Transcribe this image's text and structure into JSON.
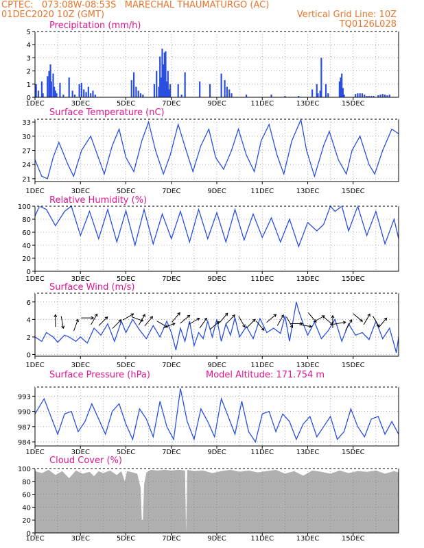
{
  "header": {
    "left_line1": "CPTEC:   073:08W-08:53S   MARECHAL THAUMATURGO (AC)",
    "left_line2": "01DEC2020 10Z (GMT)",
    "right_line2": "Vertical Grid Line: 10Z",
    "right_line3": "TQ0126L028"
  },
  "colors": {
    "series": "#2a4ee0",
    "title": "#e0158f",
    "header": "#e8742a",
    "cloud": "#b0b0b0"
  },
  "x_ticks": [
    "1DEC",
    "3DEC",
    "5DEC",
    "7DEC",
    "9DEC",
    "11DEC",
    "13DEC",
    "15DEC"
  ],
  "chart_data": [
    {
      "type": "bar",
      "title": "Precipitation (mm/h)",
      "ylim": [
        0,
        5
      ],
      "yticks": [
        0,
        1,
        2,
        3,
        4,
        5
      ],
      "x_unit": "days since 01DEC 10Z",
      "x": [
        0.05,
        0.15,
        0.3,
        0.35,
        0.55,
        0.62,
        0.68,
        0.72,
        0.8,
        0.85,
        0.9,
        0.95,
        1.1,
        1.25,
        1.5,
        1.65,
        1.75,
        1.95,
        2.05,
        2.15,
        2.25,
        2.35,
        2.45,
        2.55,
        2.65,
        4.25,
        4.35,
        4.45,
        4.55,
        4.65,
        4.75,
        5.25,
        5.35,
        5.45,
        5.5,
        5.55,
        5.6,
        5.65,
        5.7,
        5.75,
        5.8,
        5.85,
        5.9,
        5.95,
        6.3,
        6.45,
        6.6,
        7.25,
        7.7,
        8.2,
        8.35,
        8.45,
        8.55,
        8.65,
        9.3,
        10.4,
        11.0,
        11.6,
        12.2,
        12.4,
        12.45,
        12.55,
        12.6,
        12.8,
        12.9,
        13.4,
        13.45,
        13.5,
        13.55,
        13.6,
        14.1,
        14.2,
        14.3,
        14.4,
        14.5,
        14.6,
        14.7,
        14.8,
        14.9,
        15.1,
        15.2,
        15.3,
        15.4,
        15.5,
        15.6
      ],
      "values": [
        1.0,
        0.5,
        1.2,
        0.3,
        1.6,
        2.0,
        2.5,
        1.2,
        1.8,
        0.8,
        0.5,
        0.3,
        1.1,
        0.2,
        1.5,
        0.5,
        0.2,
        1.0,
        1.1,
        0.6,
        0.4,
        0.8,
        0.3,
        0.5,
        0.2,
        1.3,
        1.9,
        0.8,
        0.5,
        0.3,
        0.2,
        1.0,
        2.0,
        0.8,
        3.1,
        1.5,
        3.7,
        2.5,
        3.4,
        3.5,
        1.2,
        2.0,
        0.6,
        1.0,
        1.0,
        0.2,
        1.9,
        1.2,
        1.0,
        1.8,
        1.3,
        0.8,
        0.6,
        0.3,
        0.2,
        0.2,
        0.1,
        0.1,
        0.6,
        1.0,
        0.3,
        0.5,
        3.0,
        1.0,
        0.3,
        1.2,
        1.5,
        1.8,
        0.7,
        0.2,
        0.25,
        0.3,
        0.3,
        0.3,
        0.2,
        0.1,
        0.1,
        0.1,
        0.1,
        0.15,
        0.2,
        0.25,
        0.2,
        0.15,
        0.2
      ]
    },
    {
      "type": "line",
      "title": "Surface Temperature (nC)",
      "ylim": [
        20.4,
        33.6
      ],
      "yticks": [
        21,
        24,
        27,
        30,
        33
      ],
      "x": [
        0,
        0.3,
        0.55,
        0.8,
        1.05,
        1.45,
        1.7,
        2.05,
        2.45,
        2.75,
        3.05,
        3.4,
        3.7,
        4.0,
        4.35,
        4.7,
        5.0,
        5.3,
        5.65,
        5.95,
        6.3,
        6.65,
        6.95,
        7.3,
        7.65,
        7.95,
        8.3,
        8.65,
        8.95,
        9.3,
        9.65,
        9.95,
        10.3,
        10.65,
        10.95,
        11.3,
        11.7,
        11.95,
        12.3,
        12.7,
        12.95,
        13.35,
        13.7,
        13.95,
        14.3,
        14.7,
        14.95,
        15.3,
        15.7,
        16.0
      ],
      "values": [
        25,
        21.5,
        21,
        25.5,
        28.7,
        24,
        21.5,
        27,
        30,
        26,
        22,
        28,
        31.5,
        25.5,
        22.5,
        29,
        33,
        27,
        22,
        26,
        32.5,
        27,
        22.5,
        28,
        31.5,
        25.5,
        23,
        27,
        31.5,
        26,
        22.5,
        29,
        32.5,
        26,
        22,
        29,
        33.5,
        27,
        21.5,
        28,
        31,
        25,
        22,
        27,
        30,
        24,
        22,
        27,
        31.5,
        30.5
      ]
    },
    {
      "type": "line",
      "title": "Relative Humidity (%)",
      "ylim": [
        0,
        100
      ],
      "yticks": [
        0,
        20,
        40,
        60,
        80,
        100
      ],
      "x": [
        0,
        0.2,
        0.5,
        0.9,
        1.3,
        1.6,
        2.0,
        2.4,
        2.8,
        3.2,
        3.6,
        4.0,
        4.4,
        4.8,
        5.2,
        5.6,
        6.0,
        6.4,
        6.8,
        7.2,
        7.6,
        8.0,
        8.4,
        8.8,
        9.2,
        9.6,
        10.0,
        10.4,
        10.8,
        11.2,
        11.6,
        12.0,
        12.4,
        12.7,
        13.0,
        13.2,
        13.5,
        13.8,
        14.2,
        14.6,
        15.0,
        15.4,
        15.8,
        16.0
      ],
      "values": [
        85,
        100,
        95,
        70,
        92,
        100,
        55,
        92,
        50,
        95,
        45,
        93,
        40,
        95,
        42,
        88,
        50,
        92,
        45,
        95,
        50,
        90,
        45,
        95,
        48,
        88,
        52,
        82,
        45,
        80,
        38,
        75,
        62,
        72,
        100,
        92,
        100,
        62,
        100,
        55,
        92,
        42,
        80,
        50
      ]
    },
    {
      "type": "line",
      "title": "Surface Wind (m/s)",
      "ylim": [
        -0.2,
        7.0
      ],
      "yticks": [
        0,
        2,
        4,
        6
      ],
      "x": [
        0,
        0.3,
        0.5,
        0.8,
        1.0,
        1.3,
        1.5,
        1.8,
        2.0,
        2.3,
        2.6,
        2.9,
        3.2,
        3.5,
        3.8,
        4.0,
        4.3,
        4.6,
        4.9,
        5.2,
        5.5,
        5.8,
        6.0,
        6.2,
        6.4,
        6.6,
        6.8,
        7.0,
        7.2,
        7.4,
        7.6,
        7.8,
        8.0,
        8.2,
        8.4,
        8.6,
        8.8,
        9.0,
        9.3,
        9.6,
        9.9,
        10.2,
        10.5,
        10.8,
        11.0,
        11.2,
        11.5,
        11.6,
        11.8,
        12.0,
        12.3,
        12.6,
        12.9,
        13.2,
        13.5,
        13.8,
        14.1,
        14.4,
        14.7,
        15.0,
        15.3,
        15.6,
        15.9,
        16.0
      ],
      "values": [
        2.0,
        1.5,
        2.5,
        2.0,
        1.4,
        2.2,
        2.0,
        1.5,
        2.0,
        1.3,
        3.0,
        2.2,
        3.5,
        1.5,
        3.8,
        2.5,
        4.0,
        2.8,
        1.8,
        3.3,
        2.0,
        3.8,
        2.5,
        0.5,
        3.0,
        1.5,
        3.8,
        1.0,
        2.5,
        1.8,
        3.8,
        2.0,
        4.0,
        1.5,
        3.5,
        2.2,
        4.2,
        2.0,
        3.2,
        1.8,
        4.1,
        2.5,
        3.0,
        2.4,
        4.4,
        1.5,
        6.0,
        5.0,
        3.5,
        2.2,
        3.7,
        1.8,
        2.7,
        4.0,
        1.5,
        3.5,
        2.2,
        2.5,
        1.7,
        3.8,
        1.8,
        3.0,
        0.2,
        2.0
      ]
    },
    {
      "type": "line",
      "title": "Surface Pressure (hPa)",
      "annotation": "Model Altitude: 171.754  m",
      "ylim": [
        983.2,
        994.8
      ],
      "yticks": [
        984,
        987,
        990,
        993
      ],
      "x": [
        0,
        0.4,
        0.7,
        1.0,
        1.3,
        1.6,
        1.9,
        2.2,
        2.5,
        2.8,
        3.1,
        3.4,
        3.7,
        4.0,
        4.3,
        4.6,
        4.9,
        5.2,
        5.5,
        5.8,
        6.1,
        6.4,
        6.7,
        7.0,
        7.3,
        7.6,
        7.9,
        8.2,
        8.5,
        8.8,
        9.1,
        9.4,
        9.7,
        10.0,
        10.3,
        10.6,
        10.9,
        11.2,
        11.5,
        11.8,
        12.1,
        12.4,
        12.7,
        13.0,
        13.3,
        13.6,
        13.9,
        14.2,
        14.5,
        14.8,
        15.1,
        15.4,
        15.7,
        16.0
      ],
      "values": [
        989.5,
        992.5,
        989,
        985.5,
        989.5,
        990,
        986,
        988,
        991.5,
        988.5,
        985.5,
        990,
        991.5,
        987.5,
        984.5,
        990.5,
        988.5,
        985,
        992,
        987,
        984.5,
        994.5,
        988,
        984.5,
        990.5,
        988,
        985,
        992.5,
        989,
        985.5,
        992,
        986,
        984,
        989.5,
        990,
        986,
        989.5,
        988,
        984.5,
        987.5,
        989,
        985,
        987,
        989,
        984.5,
        986,
        990.5,
        987,
        985,
        988.5,
        989,
        985.5,
        988,
        985.5
      ]
    },
    {
      "type": "area",
      "title": "Cloud Cover (%)",
      "ylim": [
        0,
        100
      ],
      "yticks": [
        0,
        20,
        40,
        60,
        80,
        100
      ],
      "x": [
        0,
        0.3,
        0.6,
        0.9,
        1.2,
        1.5,
        1.8,
        2.1,
        2.4,
        2.6,
        2.8,
        3.0,
        3.3,
        3.6,
        3.8,
        3.95,
        4.05,
        4.2,
        4.5,
        4.65,
        4.7,
        4.75,
        4.8,
        4.9,
        5.1,
        5.4,
        5.7,
        6.0,
        6.3,
        6.6,
        6.65,
        6.7,
        7.0,
        7.4,
        7.8,
        8.2,
        8.6,
        9.0,
        9.4,
        9.8,
        10.2,
        10.6,
        11.0,
        11.4,
        11.8,
        12.2,
        12.6,
        13.0,
        13.4,
        13.8,
        14.2,
        14.6,
        15.0,
        15.4,
        15.8,
        16.0
      ],
      "values": [
        96,
        93,
        98,
        90,
        96,
        85,
        97,
        92,
        95,
        88,
        96,
        93,
        97,
        90,
        96,
        80,
        96,
        95,
        92,
        70,
        20,
        20,
        75,
        94,
        98,
        97,
        98,
        97,
        98,
        97,
        0,
        98,
        96,
        97,
        93,
        96,
        98,
        95,
        97,
        94,
        96,
        98,
        92,
        96,
        89,
        97,
        95,
        92,
        97,
        93,
        96,
        95,
        97,
        92,
        96,
        94
      ]
    }
  ],
  "panel_titles": {
    "p0": "Precipitation (mm/h)",
    "p1": "Surface Temperature (nC)",
    "p2": "Relative Humidity (%)",
    "p3": "Surface Wind (m/s)",
    "p4": "Surface Pressure (hPa)",
    "p4_extra": "Model Altitude: 171.754  m",
    "p5": "Cloud Cover (%)"
  }
}
